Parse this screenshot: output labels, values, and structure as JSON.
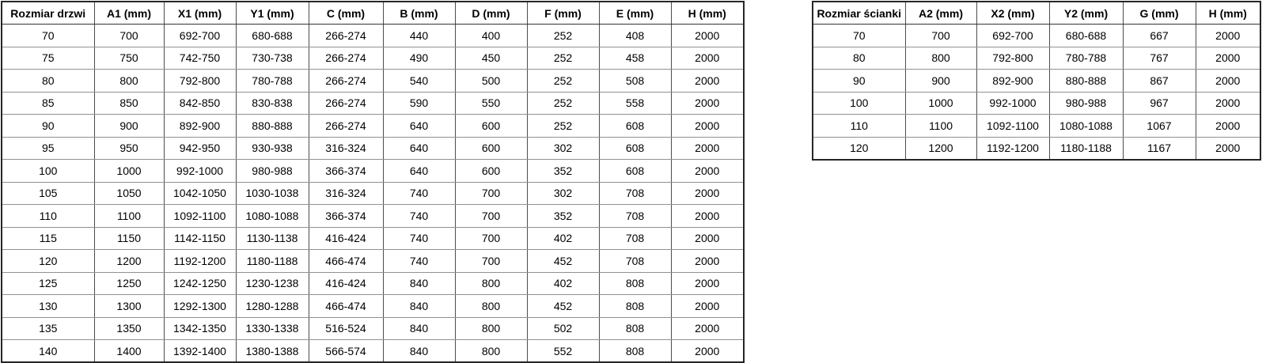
{
  "colors": {
    "background": "#ffffff",
    "text": "#000000",
    "border_outer": "#262626",
    "border_vertical": "#4d4d4d",
    "border_horizontal": "#919191"
  },
  "tables": {
    "doors": {
      "title": "Rozmiar drzwi",
      "headers": [
        "Rozmiar drzwi",
        "A1 (mm)",
        "X1 (mm)",
        "Y1 (mm)",
        "C (mm)",
        "B (mm)",
        "D (mm)",
        "F (mm)",
        "E (mm)",
        "H (mm)"
      ],
      "rows": [
        [
          "70",
          "700",
          "692-700",
          "680-688",
          "266-274",
          "440",
          "400",
          "252",
          "408",
          "2000"
        ],
        [
          "75",
          "750",
          "742-750",
          "730-738",
          "266-274",
          "490",
          "450",
          "252",
          "458",
          "2000"
        ],
        [
          "80",
          "800",
          "792-800",
          "780-788",
          "266-274",
          "540",
          "500",
          "252",
          "508",
          "2000"
        ],
        [
          "85",
          "850",
          "842-850",
          "830-838",
          "266-274",
          "590",
          "550",
          "252",
          "558",
          "2000"
        ],
        [
          "90",
          "900",
          "892-900",
          "880-888",
          "266-274",
          "640",
          "600",
          "252",
          "608",
          "2000"
        ],
        [
          "95",
          "950",
          "942-950",
          "930-938",
          "316-324",
          "640",
          "600",
          "302",
          "608",
          "2000"
        ],
        [
          "100",
          "1000",
          "992-1000",
          "980-988",
          "366-374",
          "640",
          "600",
          "352",
          "608",
          "2000"
        ],
        [
          "105",
          "1050",
          "1042-1050",
          "1030-1038",
          "316-324",
          "740",
          "700",
          "302",
          "708",
          "2000"
        ],
        [
          "110",
          "1100",
          "1092-1100",
          "1080-1088",
          "366-374",
          "740",
          "700",
          "352",
          "708",
          "2000"
        ],
        [
          "115",
          "1150",
          "1142-1150",
          "1130-1138",
          "416-424",
          "740",
          "700",
          "402",
          "708",
          "2000"
        ],
        [
          "120",
          "1200",
          "1192-1200",
          "1180-1188",
          "466-474",
          "740",
          "700",
          "452",
          "708",
          "2000"
        ],
        [
          "125",
          "1250",
          "1242-1250",
          "1230-1238",
          "416-424",
          "840",
          "800",
          "402",
          "808",
          "2000"
        ],
        [
          "130",
          "1300",
          "1292-1300",
          "1280-1288",
          "466-474",
          "840",
          "800",
          "452",
          "808",
          "2000"
        ],
        [
          "135",
          "1350",
          "1342-1350",
          "1330-1338",
          "516-524",
          "840",
          "800",
          "502",
          "808",
          "2000"
        ],
        [
          "140",
          "1400",
          "1392-1400",
          "1380-1388",
          "566-574",
          "840",
          "800",
          "552",
          "808",
          "2000"
        ]
      ]
    },
    "walls": {
      "title": "Rozmiar ścianki",
      "headers": [
        "Rozmiar ścianki",
        "A2 (mm)",
        "X2 (mm)",
        "Y2 (mm)",
        "G (mm)",
        "H (mm)"
      ],
      "rows": [
        [
          "70",
          "700",
          "692-700",
          "680-688",
          "667",
          "2000"
        ],
        [
          "80",
          "800",
          "792-800",
          "780-788",
          "767",
          "2000"
        ],
        [
          "90",
          "900",
          "892-900",
          "880-888",
          "867",
          "2000"
        ],
        [
          "100",
          "1000",
          "992-1000",
          "980-988",
          "967",
          "2000"
        ],
        [
          "110",
          "1100",
          "1092-1100",
          "1080-1088",
          "1067",
          "2000"
        ],
        [
          "120",
          "1200",
          "1192-1200",
          "1180-1188",
          "1167",
          "2000"
        ]
      ]
    }
  }
}
